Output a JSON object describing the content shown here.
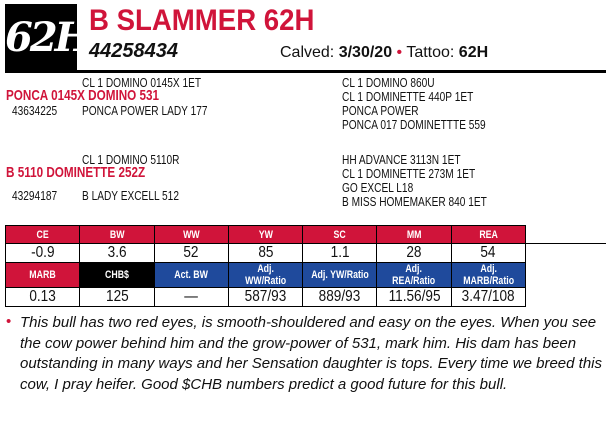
{
  "header": {
    "logo": "62H",
    "name": "B SLAMMER 62H",
    "registration": "44258434",
    "calved_label": "Calved:",
    "calved": "3/30/20",
    "tattoo_label": "Tattoo:",
    "tattoo": "62H",
    "separator": "•"
  },
  "pedigree": {
    "sire": {
      "name": "PONCA 0145X DOMINO 531",
      "reg": "43634225",
      "sire": "CL 1 DOMINO 0145X 1ET",
      "dam": "PONCA POWER LADY 177",
      "ss": "CL 1 DOMINO 860U",
      "sd": "CL 1 DOMINETTE 440P 1ET",
      "ds": "PONCA POWER",
      "dd": "PONCA 017 DOMINETTTE 559"
    },
    "dam": {
      "name": "B 5110 DOMINETTE 252Z",
      "reg": "43294187",
      "sire": "CL 1 DOMINO 5110R",
      "dam": "B LADY EXCELL 512",
      "ss": "HH ADVANCE 3113N 1ET",
      "sd": "CL 1 DOMINETTE 273M 1ET",
      "ds": "GO EXCEL L18",
      "dd": "B MISS HOMEMAKER 840 1ET"
    }
  },
  "epds": {
    "row1": {
      "headers": [
        "CE",
        "BW",
        "WW",
        "YW",
        "SC",
        "MM",
        "REA"
      ],
      "values": [
        "-0.9",
        "3.6",
        "52",
        "85",
        "1.1",
        "28",
        "54"
      ]
    },
    "row2": {
      "headers": [
        "MARB",
        "CHB$",
        "Act. BW",
        "Adj. WW/Ratio",
        "Adj. YW/Ratio",
        "Adj. REA/Ratio",
        "Adj. MARB/Ratio"
      ],
      "values": [
        "0.13",
        "125",
        "—",
        "587/93",
        "889/93",
        "11.56/95",
        "3.47/108"
      ]
    }
  },
  "colors": {
    "red": "#d0143a",
    "blue": "#1f4a9c",
    "black": "#000000"
  },
  "notes": {
    "bullet": "•",
    "text": "This bull has two red eyes, is smooth-shouldered and easy on the eyes. When you see the cow power behind him and the grow-power of 531, mark him. His dam has been outstanding in many ways and her Sensation daughter is tops. Every time we breed this cow, I pray heifer. Good $CHB numbers predict a good future for this bull."
  }
}
